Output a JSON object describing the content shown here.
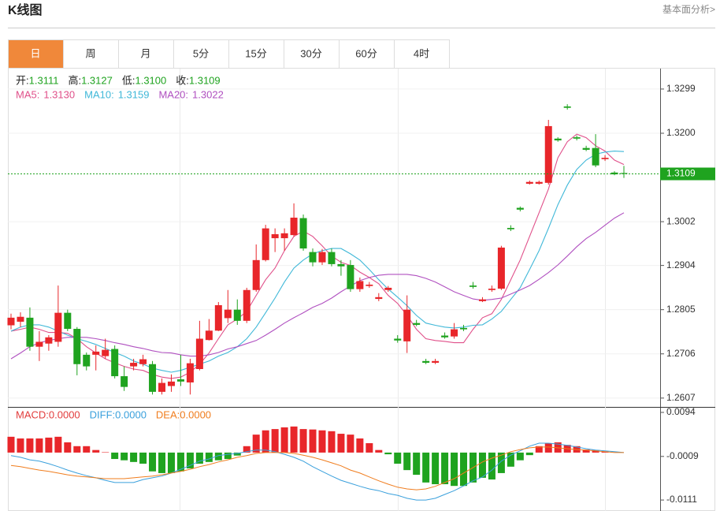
{
  "header": {
    "title": "K线图",
    "link": "基本面分析>"
  },
  "tabs": [
    "日",
    "周",
    "月",
    "5分",
    "15分",
    "30分",
    "60分",
    "4时"
  ],
  "active_tab": 0,
  "chart_data": {
    "type": "candlestick",
    "up_color": "#e8262a",
    "down_color": "#1fa31f",
    "ylim": [
      1.2589,
      1.3343
    ],
    "yticks": [
      1.3299,
      {
        "value": 1.32,
        "label": "1.3200"
      },
      1.3002,
      1.2904,
      1.2805,
      1.2706,
      1.2607
    ],
    "grid": true,
    "readout": [
      {
        "name": "开:",
        "value": 1.3111,
        "label": "1.3111"
      },
      {
        "name": "高:",
        "value": 1.3127,
        "label": "1.3127"
      },
      {
        "name": "低:",
        "value": 1.31,
        "label": "1.3100"
      },
      {
        "name": "收:",
        "value": 1.3109,
        "label": "1.3109"
      }
    ],
    "open": [
      1.277,
      1.2778,
      1.2787,
      1.2722,
      1.2729,
      1.2733,
      1.2798,
      1.2762,
      1.2704,
      1.2704,
      1.2701,
      1.2717,
      1.2656,
      1.2678,
      1.2683,
      1.2683,
      1.2621,
      1.2634,
      1.2649,
      1.2642,
      1.2672,
      1.2737,
      1.2758,
      1.2786,
      1.2805,
      1.278,
      1.2849,
      1.2916,
      1.2965,
      1.2965,
      1.2972,
      1.301,
      1.2934,
      1.2911,
      1.2934,
      1.2907,
      1.2905,
      1.2851,
      1.2858,
      1.2829,
      1.2849,
      1.274,
      1.2734,
      1.2775,
      1.269,
      1.2686,
      1.2747,
      1.2745,
      1.2764,
      1.2859,
      1.2824,
      1.2849,
      1.2852,
      1.2988,
      1.3033,
      1.3087,
      1.3087,
      1.3089,
      1.3188,
      1.326,
      1.3191,
      1.3167,
      1.3167,
      1.3142,
      1.3112,
      1.3111
    ],
    "high": [
      1.2796,
      1.2799,
      1.281,
      1.2757,
      1.2748,
      1.2859,
      1.2805,
      1.2766,
      1.2709,
      1.2725,
      1.274,
      1.2725,
      1.2678,
      1.2695,
      1.2704,
      1.269,
      1.2651,
      1.266,
      1.2704,
      1.2695,
      1.278,
      1.2784,
      1.2822,
      1.2849,
      1.2828,
      1.2854,
      1.2951,
      1.2995,
      1.2987,
      1.2987,
      1.3043,
      1.3018,
      1.2942,
      1.2941,
      1.2942,
      1.2916,
      1.2916,
      1.2877,
      1.2867,
      1.2842,
      1.2858,
      1.2748,
      1.2837,
      1.2782,
      1.2695,
      1.2695,
      1.2754,
      1.2775,
      1.2771,
      1.2867,
      1.2833,
      1.2859,
      1.2948,
      1.2994,
      1.3036,
      1.3094,
      1.3094,
      1.323,
      1.3191,
      1.3265,
      1.3195,
      1.3172,
      1.3198,
      1.3151,
      1.3115,
      1.3127
    ],
    "low": [
      1.2761,
      1.2766,
      1.2713,
      1.269,
      1.2713,
      1.2722,
      1.2757,
      1.2658,
      1.2669,
      1.2669,
      1.2695,
      1.2651,
      1.2623,
      1.2669,
      1.2678,
      1.2615,
      1.2615,
      1.2621,
      1.2634,
      1.2615,
      1.2669,
      1.2736,
      1.2757,
      1.2775,
      1.2771,
      1.2775,
      1.2845,
      1.2913,
      1.2934,
      1.2937,
      1.2969,
      1.2937,
      1.2902,
      1.2905,
      1.2902,
      1.2881,
      1.2845,
      1.2845,
      1.2854,
      1.2824,
      1.2845,
      1.2731,
      1.2708,
      1.2768,
      1.2683,
      1.2683,
      1.274,
      1.274,
      1.2757,
      1.2852,
      1.2822,
      1.2845,
      1.2849,
      1.2981,
      1.3025,
      1.3085,
      1.3085,
      1.3085,
      1.3181,
      1.3253,
      1.3184,
      1.316,
      1.3124,
      1.3138,
      1.3106,
      1.31
    ],
    "close": [
      1.2787,
      1.2789,
      1.2722,
      1.2733,
      1.2743,
      1.2798,
      1.2762,
      1.2683,
      1.2678,
      1.2711,
      1.2715,
      1.2656,
      1.2632,
      1.2686,
      1.2694,
      1.2621,
      1.2641,
      1.2644,
      1.2644,
      1.2685,
      1.274,
      1.2758,
      1.2815,
      1.2805,
      1.278,
      1.2849,
      1.2916,
      1.2987,
      1.2974,
      1.2976,
      1.3011,
      1.2942,
      1.2911,
      1.2934,
      1.2907,
      1.2902,
      1.2851,
      1.2869,
      1.2861,
      1.2833,
      1.2854,
      1.2736,
      1.2805,
      1.2771,
      1.2686,
      1.269,
      1.2743,
      1.2761,
      1.2761,
      1.2856,
      1.2828,
      1.2852,
      1.2944,
      1.2985,
      1.3029,
      1.3091,
      1.3091,
      1.3216,
      1.3184,
      1.3257,
      1.3188,
      1.3163,
      1.3128,
      1.3145,
      1.3108,
      1.3109
    ],
    "ma_series": [
      {
        "name": "MA5:",
        "color": "#e0508a",
        "readout": {
          "value": 1.313,
          "label": "1.3130"
        },
        "values": [
          1.2757,
          1.2761,
          1.2766,
          1.2761,
          1.2754,
          1.2754,
          1.2752,
          1.274,
          1.2722,
          1.2708,
          1.2695,
          1.2686,
          1.2678,
          1.2672,
          1.2669,
          1.266,
          1.2654,
          1.2651,
          1.2654,
          1.2665,
          1.2683,
          1.2708,
          1.274,
          1.2771,
          1.2784,
          1.2801,
          1.2837,
          1.2872,
          1.2898,
          1.2937,
          1.2969,
          1.2981,
          1.2969,
          1.2948,
          1.2925,
          1.2911,
          1.2904,
          1.2889,
          1.2877,
          1.2863,
          1.2837,
          1.2819,
          1.2792,
          1.2761,
          1.274,
          1.2736,
          1.2734,
          1.2731,
          1.2731,
          1.2761,
          1.2787,
          1.2796,
          1.2828,
          1.2872,
          1.2916,
          1.2969,
          1.3022,
          1.3075,
          1.3145,
          1.3181,
          1.3198,
          1.319,
          1.3172,
          1.316,
          1.314,
          1.313
        ]
      },
      {
        "name": "MA10:",
        "color": "#40b8d8",
        "readout": {
          "value": 1.3159,
          "label": "1.3159"
        },
        "values": [
          1.2757,
          1.2766,
          1.2771,
          1.2771,
          1.2766,
          1.2757,
          1.2748,
          1.274,
          1.2734,
          1.2727,
          1.2718,
          1.2709,
          1.2701,
          1.269,
          1.2683,
          1.2674,
          1.2669,
          1.2665,
          1.2669,
          1.2676,
          1.2683,
          1.269,
          1.2701,
          1.2709,
          1.2722,
          1.274,
          1.2766,
          1.2798,
          1.2831,
          1.2867,
          1.2898,
          1.2916,
          1.293,
          1.2937,
          1.2942,
          1.2942,
          1.293,
          1.2916,
          1.2895,
          1.2872,
          1.2851,
          1.2833,
          1.2814,
          1.2792,
          1.2775,
          1.277,
          1.2766,
          1.2764,
          1.2766,
          1.277,
          1.2771,
          1.2784,
          1.2801,
          1.2828,
          1.2854,
          1.2895,
          1.2937,
          1.2987,
          1.304,
          1.3084,
          1.3119,
          1.314,
          1.3153,
          1.3158,
          1.316,
          1.3159
        ]
      },
      {
        "name": "MA20:",
        "color": "#b050c0",
        "readout": {
          "value": 1.3022,
          "label": "1.3022"
        },
        "values": [
          1.2695,
          1.2708,
          1.2722,
          1.2731,
          1.2736,
          1.274,
          1.2743,
          1.2743,
          1.2743,
          1.274,
          1.2736,
          1.2731,
          1.2727,
          1.2722,
          1.2718,
          1.2713,
          1.2709,
          1.2708,
          1.2704,
          1.2701,
          1.2701,
          1.2704,
          1.2709,
          1.2717,
          1.2722,
          1.2729,
          1.2736,
          1.2748,
          1.2761,
          1.2775,
          1.2787,
          1.2798,
          1.281,
          1.2819,
          1.2831,
          1.2845,
          1.2858,
          1.287,
          1.2877,
          1.2882,
          1.2884,
          1.2884,
          1.2884,
          1.2881,
          1.2875,
          1.2867,
          1.2856,
          1.2845,
          1.2837,
          1.2829,
          1.2826,
          1.2828,
          1.2831,
          1.284,
          1.2849,
          1.2859,
          1.2873,
          1.2888,
          1.2905,
          1.2925,
          1.2946,
          1.2964,
          1.2978,
          1.2994,
          1.301,
          1.3022
        ]
      }
    ],
    "macd": {
      "ylim": [
        -0.0133,
        0.0105
      ],
      "yticks": [
        0.0094,
        -0.0009,
        -0.0111
      ],
      "histogram": {
        "name": "MACD:",
        "color": "#e23c3c",
        "readout": {
          "value": 0,
          "label": "0.0000"
        },
        "values": [
          0.0037,
          0.0033,
          0.0033,
          0.0033,
          0.0035,
          0.0037,
          0.0024,
          0.0015,
          0.0015,
          0.0006,
          0.0001,
          -0.0015,
          -0.0018,
          -0.0022,
          -0.0026,
          -0.0044,
          -0.0048,
          -0.0048,
          -0.0044,
          -0.0037,
          -0.0026,
          -0.0022,
          -0.0018,
          -0.0015,
          -0.0007,
          0.0015,
          0.0042,
          0.0052,
          0.0055,
          0.0059,
          0.0061,
          0.0055,
          0.0054,
          0.0052,
          0.005,
          0.0044,
          0.0042,
          0.0033,
          0.0022,
          0.0006,
          -0.0004,
          -0.0026,
          -0.0041,
          -0.0052,
          -0.007,
          -0.0074,
          -0.0074,
          -0.0078,
          -0.0078,
          -0.007,
          -0.0059,
          -0.0063,
          -0.0048,
          -0.0033,
          -0.0018,
          -0.0006,
          0.0015,
          0.0022,
          0.0024,
          0.0018,
          0.0015,
          0.0007,
          0.0006,
          0.0002,
          0.0001,
          0
        ]
      },
      "series": [
        {
          "name": "DIFF:",
          "color": "#3aa0dc",
          "readout": {
            "value": 0,
            "label": "0.0000"
          },
          "values": [
            -0.0007,
            -0.0011,
            -0.0017,
            -0.002,
            -0.0026,
            -0.0033,
            -0.0041,
            -0.0048,
            -0.0054,
            -0.0059,
            -0.0065,
            -0.007,
            -0.007,
            -0.007,
            -0.0063,
            -0.0059,
            -0.0055,
            -0.0048,
            -0.0039,
            -0.003,
            -0.002,
            -0.0015,
            -0.0007,
            -0.0004,
            -0.0002,
            0.0002,
            0.0006,
            0.0006,
            0.0002,
            -0.0004,
            -0.0011,
            -0.002,
            -0.0033,
            -0.0044,
            -0.0055,
            -0.0065,
            -0.0072,
            -0.0079,
            -0.0085,
            -0.0089,
            -0.0096,
            -0.01,
            -0.0107,
            -0.0111,
            -0.0111,
            -0.0107,
            -0.0098,
            -0.0089,
            -0.0078,
            -0.0066,
            -0.0057,
            -0.0041,
            -0.002,
            -0.0006,
            0.0004,
            0.0015,
            0.0022,
            0.0022,
            0.002,
            0.0017,
            0.0013,
            0.0009,
            0.0006,
            0.0004,
            0.0002,
            0
          ]
        },
        {
          "name": "DEA:",
          "color": "#f07d1e",
          "readout": {
            "value": 0,
            "label": "0.0000"
          },
          "values": [
            -0.003,
            -0.0033,
            -0.0037,
            -0.0041,
            -0.0044,
            -0.0048,
            -0.0052,
            -0.0055,
            -0.0057,
            -0.0059,
            -0.0061,
            -0.0061,
            -0.0061,
            -0.0059,
            -0.0057,
            -0.0055,
            -0.0052,
            -0.0048,
            -0.0044,
            -0.0039,
            -0.0033,
            -0.0028,
            -0.0022,
            -0.0017,
            -0.0011,
            -0.0007,
            -0.0002,
            0,
            0,
            0,
            -0.0002,
            -0.0006,
            -0.0011,
            -0.0017,
            -0.0024,
            -0.0031,
            -0.0041,
            -0.0048,
            -0.0057,
            -0.0066,
            -0.0074,
            -0.0081,
            -0.0085,
            -0.0087,
            -0.0085,
            -0.0079,
            -0.007,
            -0.0061,
            -0.0048,
            -0.0035,
            -0.0022,
            -0.0013,
            -0.0006,
            0.0002,
            0.0007,
            0.0011,
            0.0013,
            0.0013,
            0.0011,
            0.0009,
            0.0007,
            0.0006,
            0.0004,
            0.0002,
            0,
            0
          ]
        }
      ]
    }
  }
}
